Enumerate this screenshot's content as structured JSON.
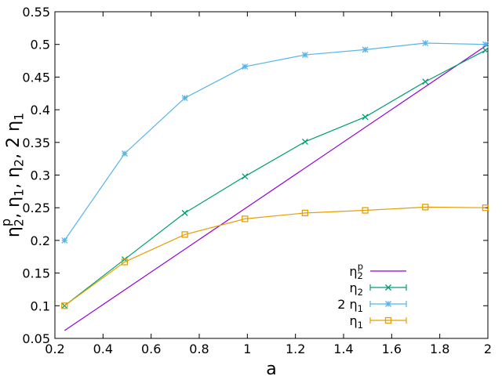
{
  "chart_data": {
    "type": "line",
    "title": "",
    "xlabel": "a",
    "ylabel": {
      "parts": [
        {
          "t": "η",
          "sub": "2",
          "sup": "p"
        },
        {
          "t": ", η",
          "sub": "1"
        },
        {
          "t": ", η",
          "sub": "2"
        },
        {
          "t": ", 2 η",
          "sub": "1"
        }
      ]
    },
    "xlim": [
      0.2,
      2.0
    ],
    "ylim": [
      0.05,
      0.55
    ],
    "xticks": [
      0.2,
      0.4,
      0.6,
      0.8,
      1.0,
      1.2,
      1.4,
      1.6,
      1.8,
      2.0
    ],
    "xtick_labels": [
      "0.2",
      "0.4",
      "0.6",
      "0.8",
      "1",
      "1.2",
      "1.4",
      "1.6",
      "1.8",
      "2"
    ],
    "yticks": [
      0.05,
      0.1,
      0.15,
      0.2,
      0.25,
      0.3,
      0.35,
      0.4,
      0.45,
      0.5,
      0.55
    ],
    "ytick_labels": [
      "0.05",
      "0.1",
      "0.15",
      "0.2",
      "0.25",
      "0.3",
      "0.35",
      "0.4",
      "0.45",
      "0.5",
      "0.55"
    ],
    "grid": false,
    "legend_position": "bottom-right",
    "series": [
      {
        "name": "η2p",
        "label": {
          "t": "η",
          "sub": "2",
          "sup": "p"
        },
        "color": "#9400d3",
        "marker": "none",
        "x": [
          0.24,
          2.0
        ],
        "y": [
          0.062,
          0.5
        ]
      },
      {
        "name": "η2",
        "label": {
          "t": "η",
          "sub": "2"
        },
        "color": "#009e73",
        "marker": "x",
        "x": [
          0.24,
          0.49,
          0.74,
          0.99,
          1.24,
          1.49,
          1.74,
          1.99
        ],
        "y": [
          0.1,
          0.171,
          0.242,
          0.298,
          0.351,
          0.389,
          0.443,
          0.491
        ]
      },
      {
        "name": "2 η1",
        "label": {
          "t": "2 η",
          "sub": "1"
        },
        "color": "#56b4e9",
        "marker": "star",
        "x": [
          0.24,
          0.49,
          0.74,
          0.99,
          1.24,
          1.49,
          1.74,
          1.99
        ],
        "y": [
          0.2,
          0.333,
          0.418,
          0.466,
          0.484,
          0.492,
          0.502,
          0.5
        ]
      },
      {
        "name": "η1",
        "label": {
          "t": "η",
          "sub": "1"
        },
        "color": "#e69f00",
        "marker": "square",
        "x": [
          0.24,
          0.49,
          0.74,
          0.99,
          1.24,
          1.49,
          1.74,
          1.99
        ],
        "y": [
          0.1,
          0.167,
          0.209,
          0.233,
          0.242,
          0.246,
          0.251,
          0.25
        ]
      }
    ]
  }
}
